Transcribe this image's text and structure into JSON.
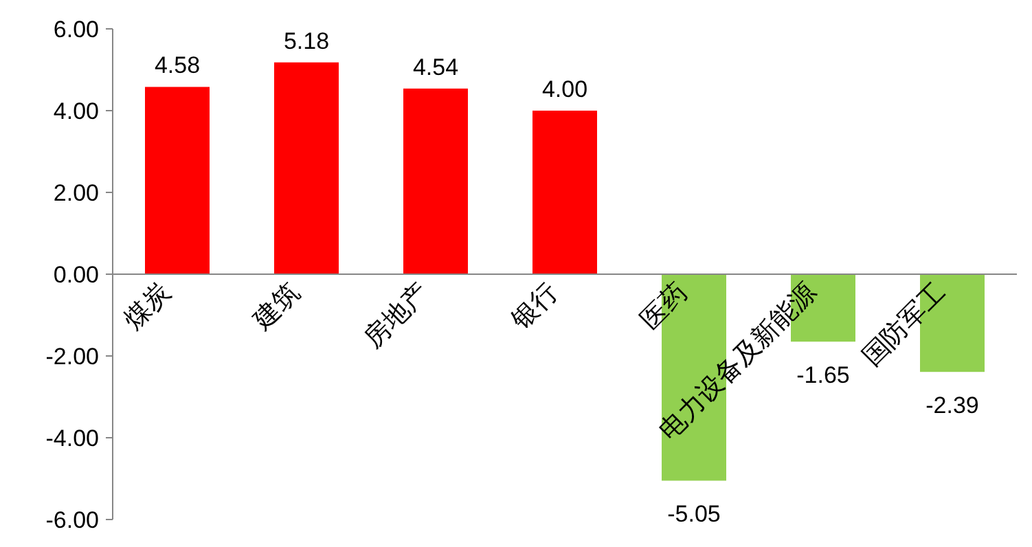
{
  "chart_data": {
    "type": "bar",
    "categories": [
      "煤炭",
      "建筑",
      "房地产",
      "银行",
      "医药",
      "电力设备及新能源",
      "国防军工"
    ],
    "values": [
      4.58,
      5.18,
      4.54,
      4.0,
      -5.05,
      -1.65,
      -2.39
    ],
    "colors": [
      "#ff0000",
      "#ff0000",
      "#ff0000",
      "#ff0000",
      "#92d050",
      "#92d050",
      "#92d050"
    ],
    "value_labels": [
      "4.58",
      "5.18",
      "4.54",
      "4.00",
      "-5.05",
      "-1.65",
      "-2.39"
    ],
    "ylim": [
      -6,
      6
    ],
    "yticks": [
      {
        "value": -6,
        "label": "-6.00"
      },
      {
        "value": -4,
        "label": "-4.00"
      },
      {
        "value": -2,
        "label": "-2.00"
      },
      {
        "value": 0,
        "label": "0.00"
      },
      {
        "value": 2,
        "label": "2.00"
      },
      {
        "value": 4,
        "label": "4.00"
      },
      {
        "value": 6,
        "label": "6.00"
      }
    ]
  }
}
